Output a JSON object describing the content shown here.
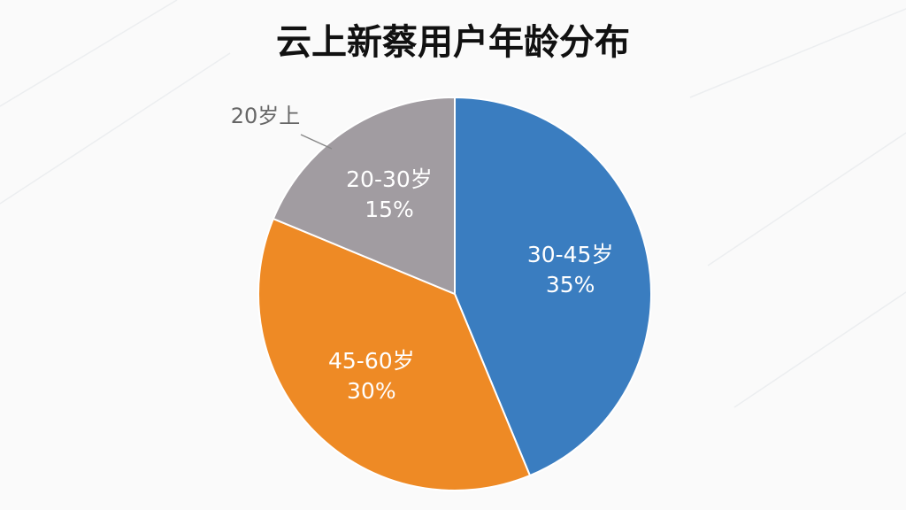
{
  "chart_data": {
    "type": "pie",
    "title": "云上新蔡用户年龄分布",
    "categories": [
      "30-45岁",
      "45-60岁",
      "20-30岁"
    ],
    "values": [
      35,
      30,
      15
    ],
    "value_labels": [
      "35%",
      "30%",
      "15%"
    ],
    "colors": [
      "#3a7dc0",
      "#ee8a25",
      "#a19ca1"
    ],
    "annotation": "20岁上"
  }
}
